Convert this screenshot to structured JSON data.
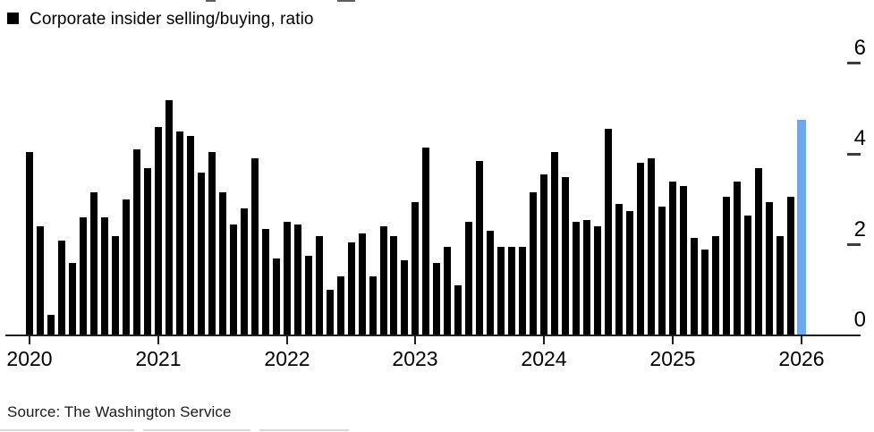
{
  "legend": {
    "label": "Corporate insider selling/buying, ratio",
    "swatch_color": "#000000"
  },
  "source": {
    "text": "Source: The Washington Service"
  },
  "colors": {
    "bar": "#000000",
    "highlight_bar": "#6BA8F0",
    "axis": "#1f1f1f",
    "background": "#ffffff"
  },
  "chart_data": {
    "type": "bar",
    "title": "Corporate insider selling/buying, ratio",
    "xlabel": "",
    "ylabel": "",
    "start_month": "2020-01",
    "frequency": "monthly",
    "values": [
      4.05,
      2.4,
      0.45,
      2.1,
      1.6,
      2.6,
      3.15,
      2.6,
      2.2,
      3.0,
      4.1,
      3.7,
      4.6,
      5.2,
      4.5,
      4.4,
      3.6,
      4.05,
      3.15,
      2.45,
      2.8,
      3.9,
      2.35,
      1.7,
      2.5,
      2.45,
      1.75,
      2.2,
      1.0,
      1.3,
      2.05,
      2.25,
      1.3,
      2.4,
      2.2,
      1.65,
      2.95,
      4.15,
      1.6,
      1.95,
      1.1,
      2.5,
      3.85,
      2.3,
      1.95,
      1.95,
      1.95,
      3.15,
      3.55,
      4.05,
      3.5,
      2.5,
      2.55,
      2.4,
      4.55,
      2.9,
      2.75,
      3.8,
      3.9,
      2.85,
      3.4,
      3.3,
      2.15,
      1.9,
      2.2,
      3.05,
      3.4,
      2.65,
      3.7,
      2.95,
      2.2,
      3.05,
      4.75
    ],
    "highlight_last_bar": true,
    "highlight_month": "2026-01",
    "highlight_value": 4.75,
    "highlight_color": "#6BA8F0",
    "bar_color": "#000000",
    "ylim": [
      0,
      6
    ],
    "y_ticks": [
      "0",
      "2",
      "4",
      "6"
    ],
    "x_ticks": [
      "2020",
      "2021",
      "2022",
      "2023",
      "2024",
      "2025",
      "2026"
    ],
    "y_axis_side": "right",
    "legend_position": "top-left",
    "grid": false
  }
}
